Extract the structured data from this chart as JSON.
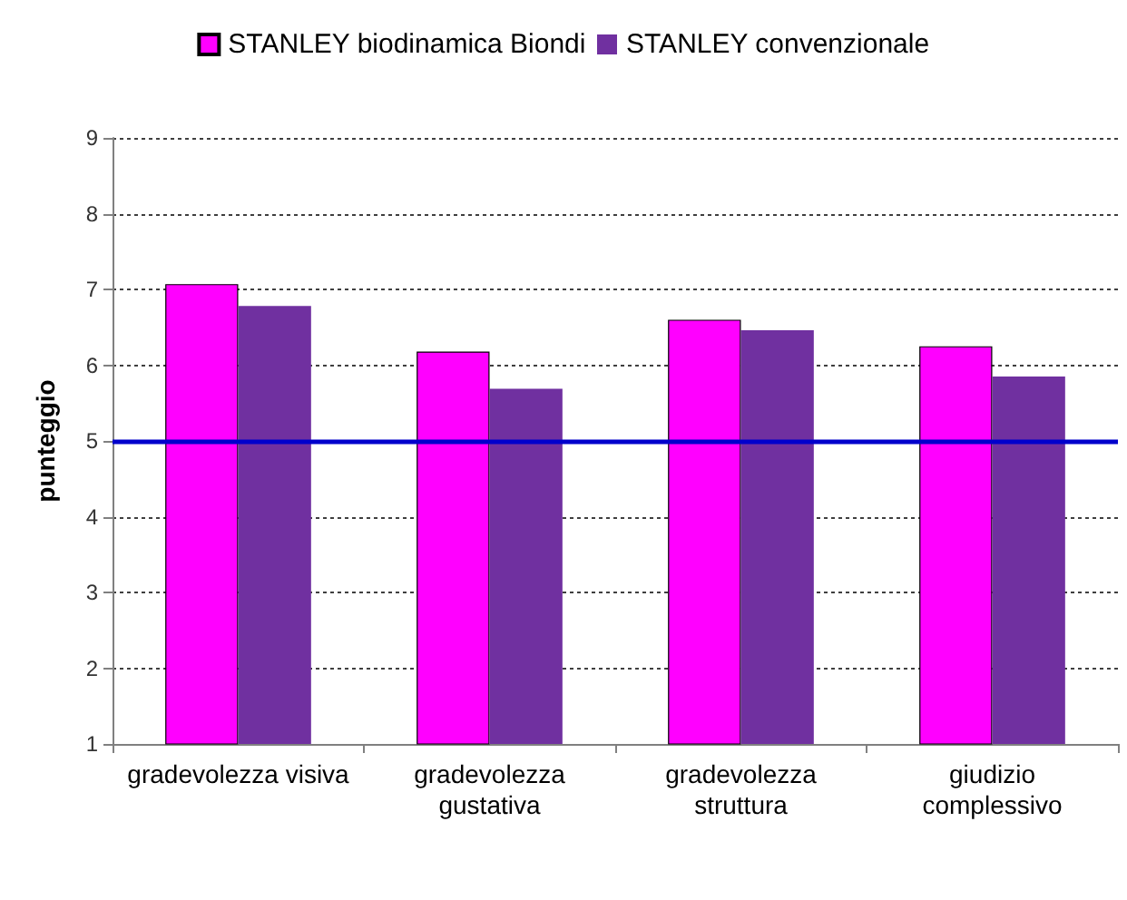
{
  "chart_data": {
    "type": "bar",
    "ylabel": "punteggio",
    "categories": [
      "gradevolezza visiva",
      "gradevolezza\ngustativa",
      "gradevolezza\nstruttura",
      "giudizio\ncomplessivo"
    ],
    "series": [
      {
        "name": "STANLEY biodinamica Biondi",
        "color": "#ff00ff",
        "values": [
          7.07,
          6.18,
          6.6,
          6.25
        ]
      },
      {
        "name": "STANLEY convenzionale",
        "color": "#7030a0",
        "values": [
          6.78,
          5.69,
          6.46,
          5.85
        ]
      }
    ],
    "ylim": [
      1,
      9
    ],
    "yticks": [
      1,
      2,
      3,
      4,
      5,
      6,
      7,
      8,
      9
    ],
    "grid": "y",
    "legend": "top",
    "ref_lines": [
      {
        "axis": "y",
        "value": 5,
        "color": "#0000cc",
        "line_style": "solid"
      }
    ]
  }
}
